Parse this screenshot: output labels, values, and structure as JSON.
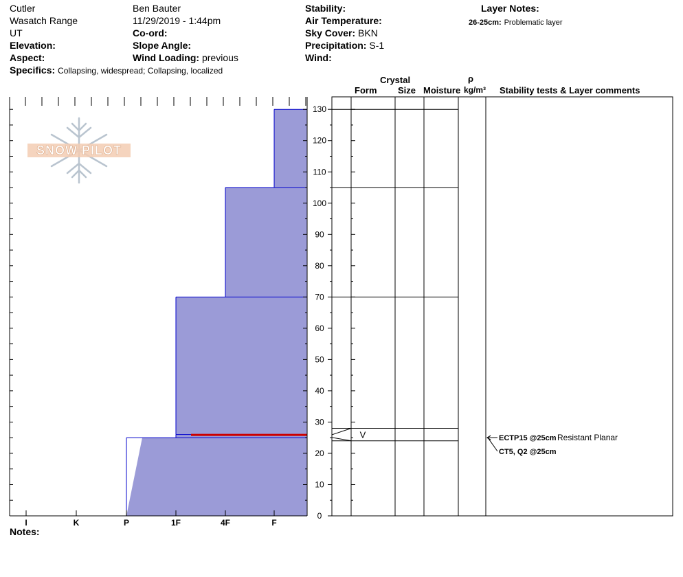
{
  "header": {
    "location": "Cutler",
    "range": "Wasatch Range",
    "state": "UT",
    "elevation_label": "Elevation:",
    "aspect_label": "Aspect:",
    "specifics_label": "Specifics:",
    "specifics_value": "Collapsing, widespread;  Collapsing, localized",
    "observer": "Ben Bauter",
    "datetime": "11/29/2019 - 1:44pm",
    "coord_label": "Co-ord:",
    "slope_label": "Slope Angle:",
    "wind_loading_label": "Wind Loading:",
    "wind_loading_value": "previous",
    "stability_label": "Stability:",
    "air_temp_label": "Air Temperature:",
    "sky_cover_label": "Sky Cover:",
    "sky_cover_value": "BKN",
    "precip_label": "Precipitation:",
    "precip_value": "S-1",
    "wind_label": "Wind:",
    "layer_notes_label": "Layer Notes:",
    "layer_note_range": "26-25cm:",
    "layer_note_text": "Problematic layer"
  },
  "logo_text": "SNOW PILOT",
  "notes_label": "Notes:",
  "columns": {
    "crystal": "Crystal",
    "form": "Form",
    "size": "Size",
    "moisture": "Moisture",
    "rho": "ρ",
    "density_unit": "kg/m³",
    "stability": "Stability tests & Layer comments"
  },
  "chart_data": {
    "type": "bar",
    "orientation": "horizontal",
    "ylim": [
      0,
      134
    ],
    "yticks": [
      0,
      10,
      20,
      30,
      40,
      50,
      60,
      70,
      80,
      90,
      100,
      110,
      120,
      130
    ],
    "hardness_categories": [
      "I",
      "K",
      "P",
      "1F",
      "4F",
      "F"
    ],
    "layers": [
      {
        "top": 130,
        "bottom": 105,
        "hardness": "F"
      },
      {
        "top": 105,
        "bottom": 70,
        "hardness": "4F"
      },
      {
        "top": 70,
        "bottom": 26,
        "hardness": "1F"
      },
      {
        "top": 26,
        "bottom": 25,
        "hardness": "1F",
        "problematic": true
      },
      {
        "top": 25,
        "bottom": 0,
        "hardness": "P"
      }
    ],
    "layer_boundaries": [
      130,
      105,
      70,
      28,
      24
    ],
    "crystal_form_symbol": "V",
    "colors": {
      "fill": "#9b9bd7",
      "edge": "#0000cc",
      "problem": "#cc0000"
    }
  },
  "stability_tests": [
    {
      "code": "ECTP15 @25cm",
      "comment": "Resistant Planar"
    },
    {
      "code": "CT5, Q2 @25cm",
      "comment": ""
    }
  ]
}
